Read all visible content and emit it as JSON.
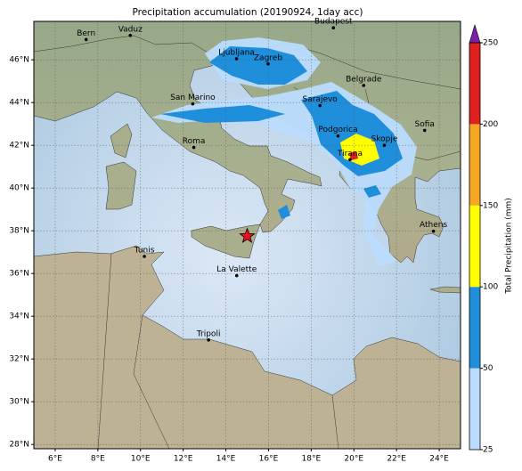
{
  "chart_data": {
    "type": "map",
    "title": "Precipitation accumulation (20190924, 1day acc)",
    "xlim": [
      5,
      25
    ],
    "ylim": [
      27.8,
      47.8
    ],
    "xticks": [
      {
        "value": 6,
        "label": "6°E"
      },
      {
        "value": 8,
        "label": "8°E"
      },
      {
        "value": 10,
        "label": "10°E"
      },
      {
        "value": 12,
        "label": "12°E"
      },
      {
        "value": 14,
        "label": "14°E"
      },
      {
        "value": 16,
        "label": "16°E"
      },
      {
        "value": 18,
        "label": "18°E"
      },
      {
        "value": 20,
        "label": "20°E"
      },
      {
        "value": 22,
        "label": "22°E"
      },
      {
        "value": 24,
        "label": "24°E"
      }
    ],
    "yticks": [
      {
        "value": 28,
        "label": "28°N"
      },
      {
        "value": 30,
        "label": "30°N"
      },
      {
        "value": 32,
        "label": "32°N"
      },
      {
        "value": 34,
        "label": "34°N"
      },
      {
        "value": 36,
        "label": "36°N"
      },
      {
        "value": 38,
        "label": "38°N"
      },
      {
        "value": 40,
        "label": "40°N"
      },
      {
        "value": 42,
        "label": "42°N"
      },
      {
        "value": 44,
        "label": "44°N"
      },
      {
        "value": 46,
        "label": "46°N"
      }
    ],
    "grid": true,
    "cities": [
      {
        "name": "Bern",
        "lon": 7.45,
        "lat": 46.95
      },
      {
        "name": "Vaduz",
        "lon": 9.52,
        "lat": 47.14
      },
      {
        "name": "Budapest",
        "lon": 19.04,
        "lat": 47.5
      },
      {
        "name": "Ljubljana",
        "lon": 14.5,
        "lat": 46.05
      },
      {
        "name": "Zagreb",
        "lon": 15.98,
        "lat": 45.81
      },
      {
        "name": "Belgrade",
        "lon": 20.46,
        "lat": 44.8
      },
      {
        "name": "San Marino",
        "lon": 12.45,
        "lat": 43.94
      },
      {
        "name": "Sarajevo",
        "lon": 18.41,
        "lat": 43.86
      },
      {
        "name": "Sofia",
        "lon": 23.32,
        "lat": 42.7
      },
      {
        "name": "Podgorica",
        "lon": 19.26,
        "lat": 42.44
      },
      {
        "name": "Skopje",
        "lon": 21.43,
        "lat": 42.0
      },
      {
        "name": "Roma",
        "lon": 12.5,
        "lat": 41.9
      },
      {
        "name": "Tirana",
        "lon": 19.82,
        "lat": 41.33
      },
      {
        "name": "Athens",
        "lon": 23.73,
        "lat": 37.98
      },
      {
        "name": "Tunis",
        "lon": 10.18,
        "lat": 36.8
      },
      {
        "name": "La Valette",
        "lon": 14.51,
        "lat": 35.9
      },
      {
        "name": "Tripoli",
        "lon": 13.19,
        "lat": 32.89
      }
    ],
    "marker": {
      "lon": 15.0,
      "lat": 37.75,
      "color": "#e8141c"
    },
    "colorbar": {
      "label": "Total Precipitation (mm)",
      "levels": [
        25,
        50,
        100,
        150,
        200,
        250
      ],
      "colors": [
        "#bcdcff",
        "#1f8fdc",
        "#ffff00",
        "#f5a623",
        "#e0201c"
      ],
      "extend_color": "#7a1fa8"
    }
  }
}
